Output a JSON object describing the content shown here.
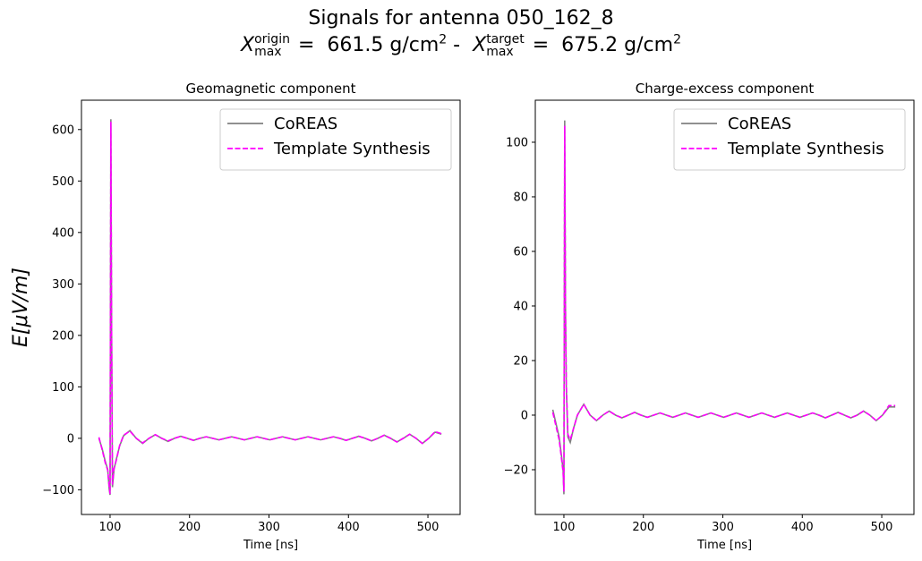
{
  "title": "Signals for antenna 050_162_8",
  "subtitle": [
    "X",
    "origin",
    "max",
    " =  661.5 g/cm",
    "2",
    " -  ",
    "X",
    "target",
    "max",
    " =  675.2 g/cm",
    "2"
  ],
  "chart_data": [
    {
      "type": "line",
      "title": "Geomagnetic component",
      "xlabel": "Time [ns]",
      "ylabel": "E[μV/m]",
      "x": [
        86,
        90,
        94,
        97,
        99,
        100,
        101,
        102,
        103,
        105,
        108,
        112,
        117,
        125,
        133,
        141,
        149,
        157,
        165,
        173,
        181,
        189,
        197,
        205,
        213,
        221,
        229,
        237,
        245,
        253,
        261,
        269,
        277,
        285,
        293,
        301,
        309,
        317,
        325,
        333,
        341,
        349,
        357,
        365,
        373,
        381,
        389,
        397,
        405,
        413,
        421,
        429,
        437,
        445,
        453,
        461,
        469,
        477,
        485,
        493,
        501,
        509,
        517
      ],
      "series": [
        {
          "name": "CoREAS",
          "color": "#808080",
          "linestyle": "solid",
          "values": [
            0,
            -20,
            -45,
            -60,
            -100,
            -110,
            620,
            200,
            -95,
            -60,
            -40,
            -15,
            5,
            15,
            0,
            -10,
            0,
            7,
            0,
            -6,
            0,
            4,
            0,
            -4,
            0,
            3,
            0,
            -3,
            0,
            3,
            0,
            -3,
            0,
            3,
            0,
            -3,
            0,
            3,
            0,
            -3,
            0,
            3,
            0,
            -3,
            0,
            3,
            0,
            -4,
            0,
            4,
            0,
            -5,
            0,
            6,
            0,
            -7,
            0,
            8,
            0,
            -10,
            0,
            12,
            8
          ]
        },
        {
          "name": "Template Synthesis",
          "color": "#ff00ff",
          "linestyle": "dashed",
          "values": [
            2,
            -22,
            -48,
            -62,
            -95,
            -108,
            615,
            190,
            -90,
            -58,
            -42,
            -14,
            6,
            14,
            0,
            -9,
            0,
            7,
            0,
            -5,
            0,
            4,
            0,
            -4,
            0,
            3,
            0,
            -3,
            0,
            3,
            0,
            -3,
            0,
            3,
            0,
            -3,
            0,
            3,
            0,
            -3,
            0,
            3,
            0,
            -3,
            0,
            3,
            0,
            -4,
            0,
            4,
            0,
            -5,
            0,
            6,
            0,
            -7,
            0,
            8,
            0,
            -10,
            0,
            13,
            9
          ]
        }
      ],
      "xlim": [
        64,
        540.5
      ],
      "ylim": [
        -148,
        657
      ],
      "xticks": [
        100,
        200,
        300,
        400,
        500
      ],
      "yticks": [
        {
          "value": -100,
          "label": "−100"
        },
        0,
        100,
        200,
        300,
        400,
        500,
        600
      ],
      "legend": "upper right"
    },
    {
      "type": "line",
      "title": "Charge-excess component",
      "xlabel": "Time [ns]",
      "x": [
        86,
        90,
        94,
        97,
        99,
        100,
        101,
        102,
        103,
        105,
        108,
        112,
        117,
        125,
        133,
        141,
        149,
        157,
        165,
        173,
        181,
        189,
        197,
        205,
        213,
        221,
        229,
        237,
        245,
        253,
        261,
        269,
        277,
        285,
        293,
        301,
        309,
        317,
        325,
        333,
        341,
        349,
        357,
        365,
        373,
        381,
        389,
        397,
        405,
        413,
        421,
        429,
        437,
        445,
        453,
        461,
        469,
        477,
        485,
        493,
        501,
        509,
        517
      ],
      "series": [
        {
          "name": "CoREAS",
          "color": "#808080",
          "linestyle": "solid",
          "values": [
            2,
            -3,
            -8,
            -15,
            -20,
            -29,
            108,
            40,
            10,
            -8,
            -10,
            -5,
            0,
            4,
            0,
            -2,
            0,
            1.5,
            0,
            -1,
            0,
            1,
            0,
            -0.8,
            0,
            0.8,
            0,
            -0.8,
            0,
            0.8,
            0,
            -0.8,
            0,
            0.8,
            0,
            -0.8,
            0,
            0.8,
            0,
            -0.8,
            0,
            0.8,
            0,
            -0.8,
            0,
            0.8,
            0,
            -0.8,
            0,
            0.8,
            0,
            -1,
            0,
            1,
            0,
            -1,
            0,
            1.5,
            0,
            -2,
            0,
            3,
            3
          ]
        },
        {
          "name": "Template Synthesis",
          "color": "#ff00ff",
          "linestyle": "dashed",
          "values": [
            1,
            -4,
            -9,
            -16,
            -21,
            -28,
            106,
            38,
            12,
            -7,
            -9,
            -5,
            0,
            4,
            0,
            -2,
            0,
            1.5,
            0,
            -1,
            0,
            1,
            0,
            -0.8,
            0,
            0.8,
            0,
            -0.8,
            0,
            0.8,
            0,
            -0.8,
            0,
            0.8,
            0,
            -0.8,
            0,
            0.8,
            0,
            -0.8,
            0,
            0.8,
            0,
            -0.8,
            0,
            0.8,
            0,
            -0.8,
            0,
            0.8,
            0,
            -1,
            0,
            1,
            0,
            -1,
            0,
            1.5,
            0,
            -2,
            0,
            3.5,
            3.5
          ]
        }
      ],
      "xlim": [
        64,
        540.5
      ],
      "ylim": [
        -36.4,
        115.4
      ],
      "xticks": [
        100,
        200,
        300,
        400,
        500
      ],
      "yticks": [
        {
          "value": -20,
          "label": "−20"
        },
        0,
        20,
        40,
        60,
        80,
        100
      ],
      "legend": "upper right"
    }
  ]
}
